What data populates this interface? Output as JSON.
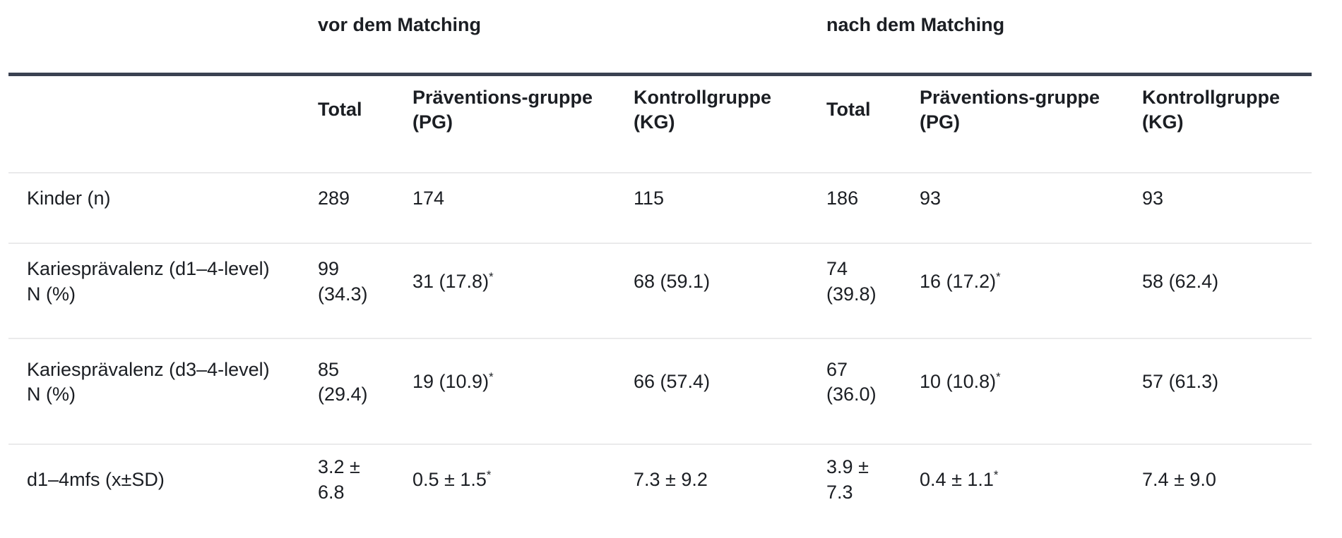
{
  "colors": {
    "background": "#ffffff",
    "text": "#1b1e23",
    "header_rule": "#3a4151",
    "row_divider": "#eaeaeb"
  },
  "table": {
    "group_headers": {
      "vor": "vor dem Matching",
      "nach": "nach dem Matching"
    },
    "column_headers": {
      "total_vor": "Total",
      "pg_vor": "Präventions-gruppe\n(PG)",
      "kg_vor": "Kontrollgruppe\n(KG)",
      "total_nach": "Total",
      "pg_nach": "Präventions-gruppe\n(PG)",
      "kg_nach": "Kontrollgruppe\n(KG)"
    },
    "rows": [
      {
        "label": "Kinder (n)",
        "total_vor": "289",
        "pg_vor": "174",
        "kg_vor": "115",
        "total_nach": "186",
        "pg_nach": "93",
        "kg_nach": "93"
      },
      {
        "label": "Kariesprävalenz (d1–4-level)\nN (%)",
        "total_vor": "99\n(34.3)",
        "pg_vor": "31 (17.8)",
        "pg_vor_note": "*",
        "kg_vor": "68 (59.1)",
        "total_nach": "74\n(39.8)",
        "pg_nach": "16 (17.2)",
        "pg_nach_note": "*",
        "kg_nach": "58 (62.4)"
      },
      {
        "label": "Kariesprävalenz (d3–4-level)\nN (%)",
        "total_vor": "85\n(29.4)",
        "pg_vor": "19 (10.9)",
        "pg_vor_note": "*",
        "kg_vor": "66 (57.4)",
        "total_nach": "67\n(36.0)",
        "pg_nach": "10 (10.8)",
        "pg_nach_note": "*",
        "kg_nach": "57 (61.3)"
      },
      {
        "label": "d1–4mfs (x±SD)",
        "total_vor": "3.2 ±\n6.8",
        "pg_vor": "0.5 ± 1.5",
        "pg_vor_note": "*",
        "kg_vor": "7.3 ± 9.2",
        "total_nach": "3.9 ±\n7.3",
        "pg_nach": "0.4 ± 1.1",
        "pg_nach_note": "*",
        "kg_nach": "7.4 ± 9.0"
      }
    ]
  }
}
